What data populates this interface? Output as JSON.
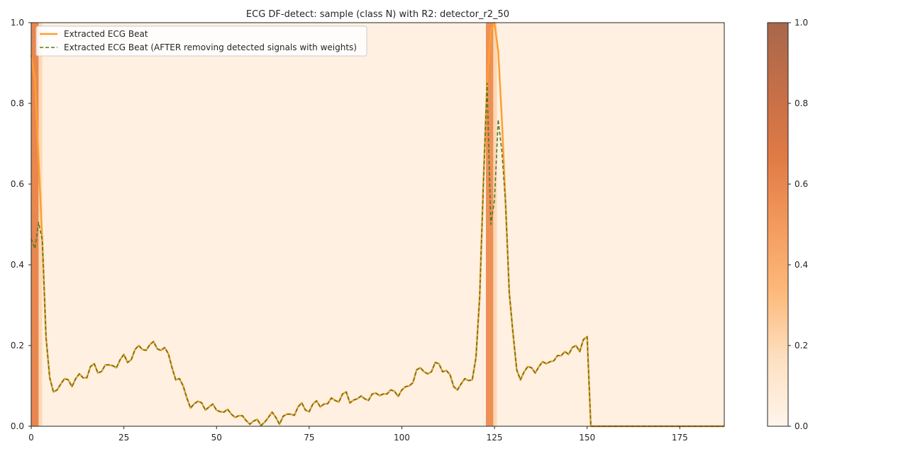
{
  "chart_data": {
    "type": "line",
    "title": "ECG DF-detect: sample (class N) with R2: detector_r2_50",
    "xlabel": "",
    "ylabel": "",
    "xlim": [
      0,
      187
    ],
    "ylim": [
      0,
      1
    ],
    "x_ticks": [
      0,
      25,
      50,
      75,
      100,
      125,
      150,
      175
    ],
    "y_ticks": [
      0.0,
      0.2,
      0.4,
      0.6,
      0.8,
      1.0
    ],
    "x_tick_labels": [
      "0",
      "25",
      "50",
      "75",
      "100",
      "125",
      "150",
      "175"
    ],
    "y_tick_labels": [
      "0.0",
      "0.2",
      "0.4",
      "0.6",
      "0.8",
      "1.0"
    ],
    "legend_position": "upper-left",
    "grid": false,
    "series": [
      {
        "name": "Extracted ECG Beat",
        "style": "solid",
        "color": "#ff9f2e",
        "values": [
          0.92,
          0.86,
          0.66,
          0.46,
          0.22,
          0.12,
          0.085,
          0.09,
          0.105,
          0.118,
          0.115,
          0.098,
          0.118,
          0.13,
          0.12,
          0.12,
          0.148,
          0.155,
          0.132,
          0.136,
          0.152,
          0.152,
          0.15,
          0.145,
          0.165,
          0.178,
          0.158,
          0.165,
          0.19,
          0.2,
          0.19,
          0.188,
          0.202,
          0.21,
          0.192,
          0.188,
          0.195,
          0.18,
          0.145,
          0.115,
          0.118,
          0.1,
          0.07,
          0.045,
          0.056,
          0.062,
          0.058,
          0.04,
          0.048,
          0.055,
          0.04,
          0.036,
          0.035,
          0.042,
          0.03,
          0.022,
          0.026,
          0.026,
          0.014,
          0.005,
          0.013,
          0.017,
          0.002,
          0.01,
          0.022,
          0.035,
          0.022,
          0.005,
          0.025,
          0.03,
          0.03,
          0.027,
          0.048,
          0.058,
          0.04,
          0.036,
          0.055,
          0.063,
          0.048,
          0.055,
          0.056,
          0.07,
          0.064,
          0.06,
          0.08,
          0.085,
          0.058,
          0.065,
          0.068,
          0.075,
          0.068,
          0.064,
          0.08,
          0.082,
          0.076,
          0.08,
          0.08,
          0.09,
          0.087,
          0.074,
          0.09,
          0.098,
          0.1,
          0.108,
          0.14,
          0.145,
          0.135,
          0.13,
          0.135,
          0.158,
          0.155,
          0.135,
          0.138,
          0.128,
          0.098,
          0.09,
          0.105,
          0.118,
          0.113,
          0.115,
          0.17,
          0.32,
          0.6,
          0.85,
          0.98,
          1.0,
          0.93,
          0.76,
          0.55,
          0.33,
          0.23,
          0.14,
          0.115,
          0.135,
          0.148,
          0.145,
          0.132,
          0.148,
          0.16,
          0.155,
          0.16,
          0.162,
          0.175,
          0.175,
          0.185,
          0.178,
          0.195,
          0.2,
          0.185,
          0.215,
          0.222,
          0.0,
          0.0,
          0.0,
          0.0,
          0.0,
          0.0,
          0.0,
          0.0,
          0.0,
          0.0,
          0.0,
          0.0,
          0.0,
          0.0,
          0.0,
          0.0,
          0.0,
          0.0,
          0.0,
          0.0,
          0.0,
          0.0,
          0.0,
          0.0,
          0.0,
          0.0,
          0.0,
          0.0,
          0.0,
          0.0,
          0.0,
          0.0,
          0.0,
          0.0,
          0.0,
          0.0,
          0.0
        ]
      },
      {
        "name": "Extracted ECG Beat (AFTER removing detected signals with weights)",
        "style": "dashed",
        "color": "#4f7a28",
        "values": [
          0.465,
          0.44,
          0.505,
          0.46,
          0.22,
          0.12,
          0.085,
          0.09,
          0.105,
          0.118,
          0.115,
          0.098,
          0.118,
          0.13,
          0.12,
          0.12,
          0.148,
          0.155,
          0.132,
          0.136,
          0.152,
          0.152,
          0.15,
          0.145,
          0.165,
          0.178,
          0.158,
          0.165,
          0.19,
          0.2,
          0.19,
          0.188,
          0.202,
          0.21,
          0.192,
          0.188,
          0.195,
          0.18,
          0.145,
          0.115,
          0.118,
          0.1,
          0.07,
          0.045,
          0.056,
          0.062,
          0.058,
          0.04,
          0.048,
          0.055,
          0.04,
          0.036,
          0.035,
          0.042,
          0.03,
          0.022,
          0.026,
          0.026,
          0.014,
          0.005,
          0.013,
          0.017,
          0.002,
          0.01,
          0.022,
          0.035,
          0.022,
          0.005,
          0.025,
          0.03,
          0.03,
          0.027,
          0.048,
          0.058,
          0.04,
          0.036,
          0.055,
          0.063,
          0.048,
          0.055,
          0.056,
          0.07,
          0.064,
          0.06,
          0.08,
          0.085,
          0.058,
          0.065,
          0.068,
          0.075,
          0.068,
          0.064,
          0.08,
          0.082,
          0.076,
          0.08,
          0.08,
          0.09,
          0.087,
          0.074,
          0.09,
          0.098,
          0.1,
          0.108,
          0.14,
          0.145,
          0.135,
          0.13,
          0.135,
          0.158,
          0.155,
          0.135,
          0.138,
          0.128,
          0.098,
          0.09,
          0.105,
          0.118,
          0.113,
          0.115,
          0.17,
          0.32,
          0.6,
          0.85,
          0.5,
          0.56,
          0.76,
          0.68,
          0.55,
          0.33,
          0.23,
          0.14,
          0.115,
          0.135,
          0.148,
          0.145,
          0.132,
          0.148,
          0.16,
          0.155,
          0.16,
          0.162,
          0.175,
          0.175,
          0.185,
          0.178,
          0.195,
          0.2,
          0.185,
          0.215,
          0.222,
          0.0,
          0.0,
          0.0,
          0.0,
          0.0,
          0.0,
          0.0,
          0.0,
          0.0,
          0.0,
          0.0,
          0.0,
          0.0,
          0.0,
          0.0,
          0.0,
          0.0,
          0.0,
          0.0,
          0.0,
          0.0,
          0.0,
          0.0,
          0.0,
          0.0,
          0.0,
          0.0,
          0.0,
          0.0,
          0.0,
          0.0,
          0.0,
          0.0,
          0.0,
          0.0,
          0.0,
          0.0
        ]
      }
    ],
    "heatmap_weights": [
      0.6,
      0.6,
      0.2,
      0.04,
      0.04,
      0.04,
      0.04,
      0.04,
      0.04,
      0.04,
      0.04,
      0.04,
      0.04,
      0.04,
      0.04,
      0.04,
      0.04,
      0.04,
      0.04,
      0.04,
      0.04,
      0.04,
      0.04,
      0.04,
      0.04,
      0.04,
      0.04,
      0.04,
      0.04,
      0.04,
      0.04,
      0.04,
      0.04,
      0.04,
      0.04,
      0.04,
      0.04,
      0.04,
      0.04,
      0.04,
      0.04,
      0.04,
      0.04,
      0.04,
      0.04,
      0.04,
      0.04,
      0.04,
      0.04,
      0.04,
      0.04,
      0.04,
      0.04,
      0.04,
      0.04,
      0.04,
      0.04,
      0.04,
      0.04,
      0.04,
      0.04,
      0.04,
      0.04,
      0.04,
      0.04,
      0.04,
      0.04,
      0.04,
      0.04,
      0.04,
      0.04,
      0.04,
      0.04,
      0.04,
      0.04,
      0.04,
      0.04,
      0.04,
      0.04,
      0.04,
      0.04,
      0.04,
      0.04,
      0.04,
      0.04,
      0.04,
      0.04,
      0.04,
      0.04,
      0.04,
      0.04,
      0.04,
      0.04,
      0.04,
      0.04,
      0.04,
      0.04,
      0.04,
      0.04,
      0.04,
      0.04,
      0.04,
      0.04,
      0.04,
      0.04,
      0.04,
      0.04,
      0.04,
      0.04,
      0.04,
      0.04,
      0.04,
      0.04,
      0.04,
      0.04,
      0.04,
      0.04,
      0.04,
      0.04,
      0.04,
      0.04,
      0.04,
      0.04,
      0.04,
      0.55,
      0.55,
      0.2,
      0.04,
      0.04,
      0.04,
      0.04,
      0.04,
      0.04,
      0.04,
      0.04,
      0.04,
      0.04,
      0.04,
      0.04,
      0.04,
      0.04,
      0.04,
      0.04,
      0.04,
      0.04,
      0.04,
      0.04,
      0.04,
      0.04,
      0.04,
      0.04,
      0.04,
      0.04,
      0.04,
      0.04,
      0.04,
      0.04,
      0.04,
      0.04,
      0.04,
      0.04,
      0.04,
      0.04,
      0.04,
      0.04,
      0.04,
      0.04,
      0.04,
      0.04,
      0.04,
      0.04,
      0.04,
      0.04,
      0.04,
      0.04,
      0.04,
      0.04,
      0.04,
      0.04,
      0.04,
      0.04,
      0.04,
      0.04,
      0.04,
      0.04,
      0.04,
      0.04,
      0.04,
      0.04
    ],
    "colorbar": {
      "range": [
        0.0,
        1.0
      ],
      "ticks": [
        0.0,
        0.2,
        0.4,
        0.6,
        0.8,
        1.0
      ],
      "tick_labels": [
        "0.0",
        "0.2",
        "0.4",
        "0.6",
        "0.8",
        "1.0"
      ],
      "colormap": "oranges",
      "color_stops": [
        "#fff5eb",
        "#fde0c2",
        "#fdb97a",
        "#f39a5e",
        "#e07a45",
        "#c56f48",
        "#a8674a"
      ]
    }
  }
}
